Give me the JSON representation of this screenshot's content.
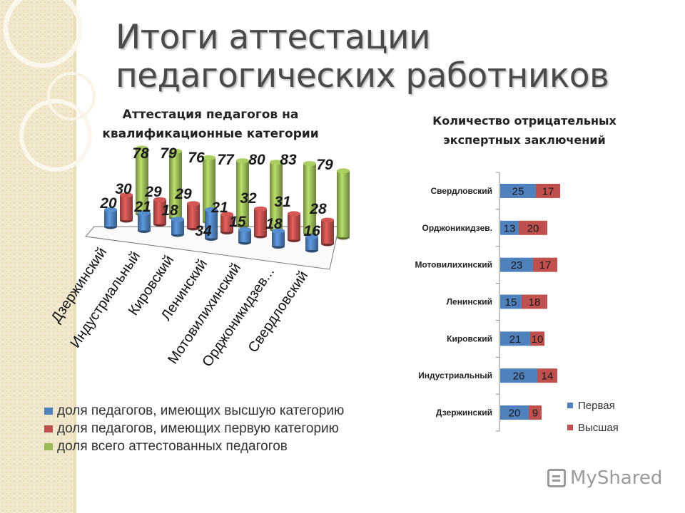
{
  "page": {
    "title_line1": "Итоги аттестации",
    "title_line2": "педагогических работников",
    "watermark": "MyShared"
  },
  "colors": {
    "blue": "#4f81bd",
    "red": "#c0504d",
    "green": "#9bbb59",
    "background_band": "#f1e7cc"
  },
  "chart_data": [
    {
      "type": "bar",
      "variant": "3d-cylinder",
      "title_line1": "Аттестация педагогов на",
      "title_line2": "квалификационные категории",
      "categories": [
        "Дзержинский",
        "Индустриальный",
        "Кировский",
        "Ленинский",
        "Мотовилихинский",
        "Орджоникидзев...",
        "Свердловский"
      ],
      "series": [
        {
          "name": "доля педагогов, имеющих высшую категорию",
          "color": "#4f81bd",
          "values": [
            20,
            21,
            18,
            34,
            15,
            18,
            16
          ]
        },
        {
          "name": "доля педагогов, имеющих первую категорию",
          "color": "#c0504d",
          "values": [
            30,
            29,
            29,
            21,
            32,
            31,
            28
          ]
        },
        {
          "name": "доля всего аттестованных педагогов",
          "color": "#9bbb59",
          "values": [
            78,
            79,
            76,
            77,
            80,
            83,
            79
          ]
        }
      ],
      "legend_position": "bottom",
      "grid": false
    },
    {
      "type": "bar",
      "orientation": "horizontal",
      "stacked": true,
      "title_line1": "Количество отрицательных",
      "title_line2": "экспертных заключений",
      "categories": [
        "Свердловский",
        "Орджоникидзев.",
        "Мотовилихинский",
        "Ленинский",
        "Кировский",
        "Индустриальный",
        "Дзержинский"
      ],
      "series": [
        {
          "name": "Первая",
          "color": "#4f81bd",
          "values": [
            25,
            13,
            23,
            15,
            21,
            26,
            20
          ]
        },
        {
          "name": "Высшая",
          "color": "#c0504d",
          "values": [
            17,
            20,
            17,
            18,
            10,
            14,
            9
          ]
        }
      ],
      "legend_position": "bottom-right",
      "grid": false
    }
  ]
}
